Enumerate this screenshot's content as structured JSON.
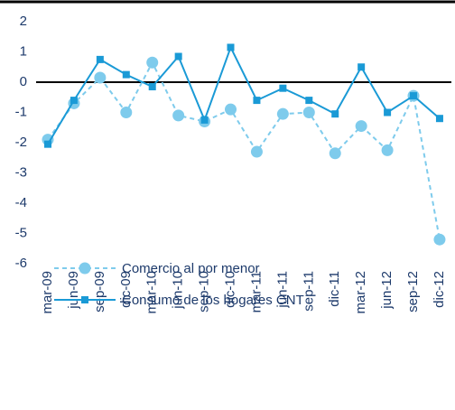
{
  "chart_data": {
    "type": "line",
    "categories": [
      "mar-09",
      "jun-09",
      "sep-09",
      "dic-09",
      "mar-10",
      "jun-10",
      "sep-10",
      "dic-10",
      "mar-11",
      "jun-11",
      "sep-11",
      "dic-11",
      "mar-12",
      "jun-12",
      "sep-12",
      "dic-12"
    ],
    "series": [
      {
        "name": "Comercio al por menor",
        "color": "#7ecbec",
        "dashed": true,
        "marker": "circle",
        "values": [
          -1.9,
          -0.7,
          0.15,
          -1.0,
          0.65,
          -1.1,
          -1.3,
          -0.9,
          -2.3,
          -1.05,
          -1.0,
          -2.35,
          -1.45,
          -2.25,
          -0.45,
          -5.2
        ]
      },
      {
        "name": "Consumo de los hogares CNT",
        "color": "#1a9ad6",
        "dashed": false,
        "marker": "square",
        "values": [
          -2.05,
          -0.6,
          0.75,
          0.25,
          -0.15,
          0.85,
          -1.25,
          1.15,
          -0.6,
          -0.2,
          -0.6,
          -1.05,
          0.5,
          -1.0,
          -0.45,
          -1.2
        ]
      }
    ],
    "ylim": [
      -6,
      2
    ],
    "yticks": [
      -6,
      -5,
      -4,
      -3,
      -2,
      -1,
      0,
      1,
      2
    ],
    "grid": false
  }
}
